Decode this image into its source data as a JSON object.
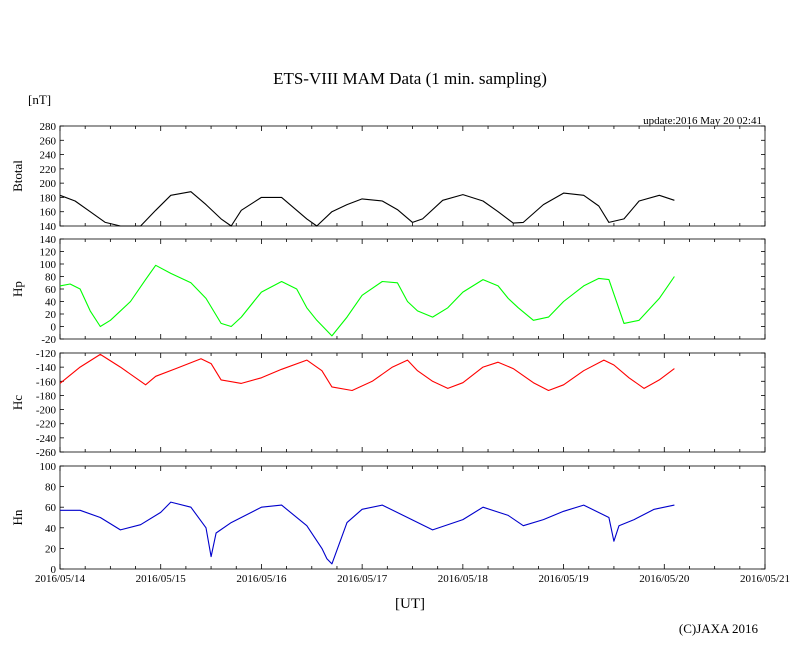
{
  "title": "ETS-VIII MAM Data (1 min. sampling)",
  "unit_label": "[nT]",
  "update_text": "update:2016 May 20 02:41",
  "xlabel": "[UT]",
  "copyright": "(C)JAXA 2016",
  "chart_data": {
    "type": "line",
    "x_ticks": [
      "2016/05/14",
      "2016/05/15",
      "2016/05/16",
      "2016/05/17",
      "2016/05/18",
      "2016/05/19",
      "2016/05/20",
      "2016/05/21"
    ],
    "xlim": [
      "2016/05/14 00:00",
      "2016/05/21 00:00"
    ],
    "grid": false,
    "panels": [
      {
        "ylabel": "Btotal",
        "ylim": [
          140,
          280
        ],
        "yticks": [
          140,
          160,
          180,
          200,
          220,
          240,
          260,
          280
        ],
        "color": "#000000",
        "series": {
          "x": [
            0.0,
            0.15,
            0.3,
            0.45,
            0.6,
            0.8,
            0.95,
            1.1,
            1.3,
            1.45,
            1.6,
            1.7,
            1.8,
            2.0,
            2.2,
            2.35,
            2.45,
            2.55,
            2.7,
            2.85,
            3.0,
            3.2,
            3.35,
            3.5,
            3.6,
            3.8,
            4.0,
            4.2,
            4.35,
            4.5,
            4.6,
            4.8,
            5.0,
            5.2,
            5.35,
            5.45,
            5.6,
            5.75,
            5.95,
            6.1
          ],
          "y": [
            183,
            175,
            160,
            145,
            140,
            140,
            162,
            183,
            188,
            170,
            150,
            140,
            162,
            180,
            180,
            162,
            150,
            140,
            160,
            170,
            178,
            175,
            163,
            145,
            150,
            176,
            184,
            175,
            160,
            144,
            145,
            170,
            186,
            183,
            168,
            145,
            150,
            175,
            183,
            176
          ]
        }
      },
      {
        "ylabel": "Hp",
        "ylim": [
          -20,
          140
        ],
        "yticks": [
          -20,
          0,
          20,
          40,
          60,
          80,
          100,
          120,
          140
        ],
        "color": "#00ff00",
        "series": {
          "x": [
            0.0,
            0.1,
            0.2,
            0.3,
            0.4,
            0.5,
            0.7,
            0.85,
            0.95,
            1.1,
            1.3,
            1.45,
            1.6,
            1.7,
            1.8,
            2.0,
            2.2,
            2.35,
            2.45,
            2.55,
            2.7,
            2.85,
            3.0,
            3.2,
            3.35,
            3.45,
            3.55,
            3.7,
            3.85,
            4.0,
            4.2,
            4.35,
            4.45,
            4.55,
            4.7,
            4.85,
            5.0,
            5.2,
            5.35,
            5.45,
            5.6,
            5.75,
            5.95,
            6.1
          ],
          "y": [
            65,
            68,
            60,
            25,
            0,
            10,
            40,
            75,
            98,
            85,
            70,
            45,
            5,
            0,
            15,
            55,
            72,
            60,
            30,
            10,
            -15,
            15,
            50,
            72,
            70,
            40,
            25,
            15,
            30,
            55,
            75,
            65,
            45,
            30,
            10,
            15,
            40,
            65,
            77,
            75,
            5,
            10,
            45,
            80
          ]
        }
      },
      {
        "ylabel": "Hc",
        "ylim": [
          -260,
          -120
        ],
        "yticks": [
          -260,
          -240,
          -220,
          -200,
          -180,
          -160,
          -140,
          -120
        ],
        "color": "#ff0000",
        "series": {
          "x": [
            0.0,
            0.2,
            0.4,
            0.6,
            0.85,
            0.95,
            1.15,
            1.4,
            1.5,
            1.6,
            1.8,
            2.0,
            2.2,
            2.45,
            2.6,
            2.7,
            2.9,
            3.1,
            3.3,
            3.45,
            3.55,
            3.7,
            3.85,
            4.0,
            4.2,
            4.35,
            4.5,
            4.7,
            4.85,
            5.0,
            5.2,
            5.4,
            5.5,
            5.65,
            5.8,
            5.95,
            6.1
          ],
          "y": [
            -163,
            -140,
            -122,
            -140,
            -165,
            -153,
            -142,
            -128,
            -135,
            -158,
            -163,
            -155,
            -143,
            -130,
            -145,
            -168,
            -173,
            -160,
            -140,
            -130,
            -145,
            -160,
            -170,
            -162,
            -140,
            -133,
            -142,
            -162,
            -173,
            -165,
            -145,
            -130,
            -137,
            -155,
            -170,
            -158,
            -142
          ]
        }
      },
      {
        "ylabel": "Hn",
        "ylim": [
          0,
          100
        ],
        "yticks": [
          0,
          20,
          40,
          60,
          80,
          100
        ],
        "color": "#0000cc",
        "series": {
          "x": [
            0.0,
            0.2,
            0.4,
            0.6,
            0.8,
            1.0,
            1.1,
            1.3,
            1.45,
            1.5,
            1.55,
            1.7,
            2.0,
            2.2,
            2.45,
            2.6,
            2.65,
            2.7,
            2.85,
            3.0,
            3.2,
            3.45,
            3.7,
            4.0,
            4.2,
            4.45,
            4.6,
            4.8,
            5.0,
            5.2,
            5.45,
            5.5,
            5.55,
            5.7,
            5.9,
            6.1
          ],
          "y": [
            57,
            57,
            50,
            38,
            43,
            55,
            65,
            60,
            40,
            12,
            35,
            45,
            60,
            62,
            42,
            20,
            10,
            5,
            45,
            58,
            62,
            50,
            38,
            48,
            60,
            52,
            42,
            48,
            56,
            62,
            50,
            27,
            42,
            48,
            58,
            62
          ]
        }
      }
    ]
  }
}
